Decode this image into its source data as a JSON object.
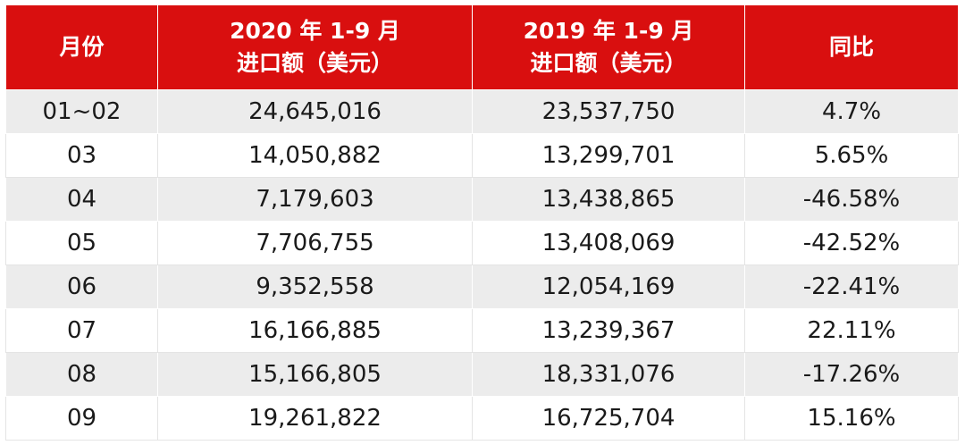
{
  "chart_data": {
    "type": "table",
    "columns": [
      {
        "lines": [
          "月份"
        ]
      },
      {
        "lines": [
          "2020 年 1-9 月",
          "进口额（美元）"
        ]
      },
      {
        "lines": [
          "2019 年 1-9 月",
          "进口额（美元）"
        ]
      },
      {
        "lines": [
          "同比"
        ]
      }
    ],
    "rows": [
      [
        "01~02",
        "24,645,016",
        "23,537,750",
        "4.7%"
      ],
      [
        "03",
        "14,050,882",
        "13,299,701",
        "5.65%"
      ],
      [
        "04",
        "7,179,603",
        "13,438,865",
        "-46.58%"
      ],
      [
        "05",
        "7,706,755",
        "13,408,069",
        "-42.52%"
      ],
      [
        "06",
        "9,352,558",
        "12,054,169",
        "-22.41%"
      ],
      [
        "07",
        "16,166,885",
        "13,239,367",
        "22.11%"
      ],
      [
        "08",
        "15,166,805",
        "18,331,076",
        "-17.26%"
      ],
      [
        "09",
        "19,261,822",
        "16,725,704",
        "15.16%"
      ]
    ],
    "values_2020": [
      24645016,
      14050882,
      7179603,
      7706755,
      9352558,
      16166885,
      15166805,
      19261822
    ],
    "values_2019": [
      23537750,
      13299701,
      13438865,
      13408069,
      12054169,
      13239367,
      18331076,
      16725704
    ],
    "yoy_percent": [
      4.7,
      5.65,
      -46.58,
      -42.52,
      -22.41,
      22.11,
      -17.26,
      15.16
    ]
  },
  "colors": {
    "header_bg": "#d90f0f",
    "header_text": "#ffffff",
    "row_shaded": "#ececec",
    "row_plain": "#ffffff"
  }
}
